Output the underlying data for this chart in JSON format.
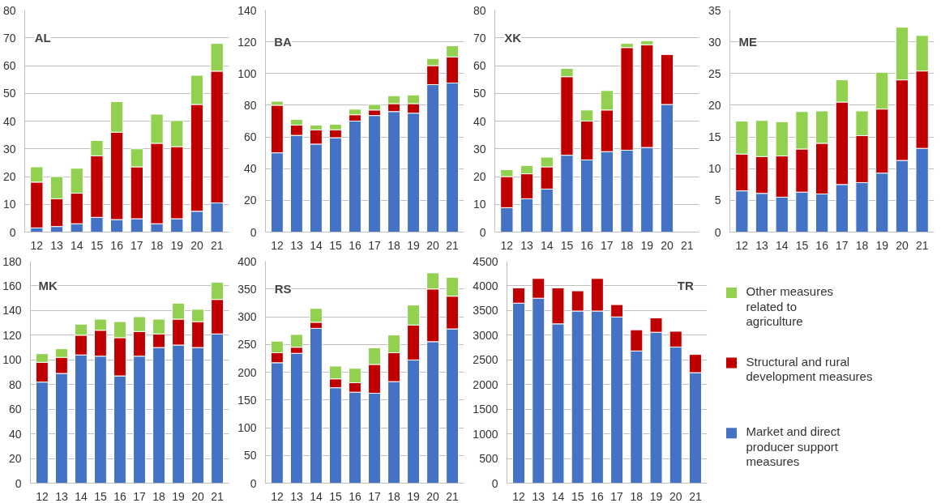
{
  "chart_data": [
    {
      "type": "bar",
      "stacked": true,
      "title": "AL",
      "categories": [
        "12",
        "13",
        "14",
        "15",
        "16",
        "17",
        "18",
        "19",
        "20",
        "21"
      ],
      "ylim": [
        0,
        80
      ],
      "yticks": [
        0,
        10,
        20,
        30,
        40,
        50,
        60,
        70,
        80
      ],
      "grid": "y",
      "series": [
        {
          "color": "#4472c4",
          "values": [
            1.5,
            2,
            3,
            5.3,
            4.5,
            4.8,
            3,
            4.8,
            7.5,
            10.5
          ]
        },
        {
          "color": "#c00000",
          "values": [
            16.5,
            10,
            11,
            22.2,
            31.5,
            18.7,
            29,
            26,
            38.5,
            47.5
          ]
        },
        {
          "color": "#92d050",
          "values": [
            5.5,
            8,
            9,
            5.5,
            11,
            6.5,
            10.5,
            9.4,
            10.5,
            10
          ]
        }
      ]
    },
    {
      "type": "bar",
      "stacked": true,
      "title": "BA",
      "categories": [
        "12",
        "13",
        "14",
        "15",
        "16",
        "17",
        "18",
        "19",
        "20",
        "21"
      ],
      "ylim": [
        0,
        140
      ],
      "yticks": [
        0,
        20,
        40,
        60,
        80,
        100,
        120,
        140
      ],
      "grid": "y",
      "series": [
        {
          "color": "#4472c4",
          "values": [
            50,
            61,
            55.5,
            59.5,
            70,
            73.5,
            76,
            75,
            93,
            94
          ]
        },
        {
          "color": "#c00000",
          "values": [
            30,
            6.5,
            9,
            5,
            4,
            3.5,
            5,
            6,
            12,
            16.5
          ]
        },
        {
          "color": "#92d050",
          "values": [
            2.5,
            3.5,
            3,
            3.5,
            3.5,
            3.5,
            5,
            5.5,
            4.5,
            7
          ]
        }
      ]
    },
    {
      "type": "bar",
      "stacked": true,
      "title": "XK",
      "categories": [
        "12",
        "13",
        "14",
        "15",
        "16",
        "17",
        "18",
        "19",
        "20",
        "21"
      ],
      "ylim": [
        0,
        80
      ],
      "yticks": [
        0,
        10,
        20,
        30,
        40,
        50,
        60,
        70,
        80
      ],
      "grid": "y",
      "series": [
        {
          "color": "#4472c4",
          "values": [
            8.8,
            12,
            15.5,
            27.7,
            26,
            29,
            29.5,
            30.5,
            46,
            null
          ]
        },
        {
          "color": "#c00000",
          "values": [
            11.2,
            9,
            8,
            28.3,
            14,
            15,
            37,
            37,
            18,
            null
          ]
        },
        {
          "color": "#92d050",
          "values": [
            2.5,
            3,
            3.5,
            3,
            4,
            7,
            1.5,
            1.5,
            null,
            null
          ]
        }
      ]
    },
    {
      "type": "bar",
      "stacked": true,
      "title": "ME",
      "categories": [
        "12",
        "13",
        "14",
        "15",
        "16",
        "17",
        "18",
        "19",
        "20",
        "21"
      ],
      "ylim": [
        0,
        35
      ],
      "yticks": [
        0,
        5,
        10,
        15,
        20,
        25,
        30,
        35
      ],
      "grid": "y",
      "series": [
        {
          "color": "#4472c4",
          "values": [
            6.5,
            6.1,
            5.5,
            6.3,
            6,
            7.5,
            7.8,
            9.3,
            11.3,
            13.2
          ]
        },
        {
          "color": "#c00000",
          "values": [
            5.8,
            5.8,
            6.5,
            6.8,
            8,
            13,
            7.4,
            10.1,
            12.7,
            12.2
          ]
        },
        {
          "color": "#92d050",
          "values": [
            5.2,
            5.7,
            5.4,
            5.9,
            5.1,
            3.5,
            3.9,
            5.8,
            8.3,
            5.6
          ]
        }
      ]
    },
    {
      "type": "bar",
      "stacked": true,
      "title": "MK",
      "categories": [
        "12",
        "13",
        "14",
        "15",
        "16",
        "17",
        "18",
        "19",
        "20",
        "21"
      ],
      "ylim": [
        0,
        180
      ],
      "yticks": [
        0,
        20,
        40,
        60,
        80,
        100,
        120,
        140,
        160,
        180
      ],
      "grid": "y",
      "series": [
        {
          "color": "#4472c4",
          "values": [
            82,
            89,
            104,
            103,
            87,
            103,
            110,
            112,
            110,
            121
          ]
        },
        {
          "color": "#c00000",
          "values": [
            16,
            13,
            16,
            21,
            31,
            20,
            11,
            21,
            21,
            28
          ]
        },
        {
          "color": "#92d050",
          "values": [
            7,
            7,
            9,
            9,
            13,
            12,
            12,
            13,
            10,
            14
          ]
        }
      ]
    },
    {
      "type": "bar",
      "stacked": true,
      "title": "RS",
      "categories": [
        "12",
        "13",
        "14",
        "15",
        "16",
        "17",
        "18",
        "19",
        "20",
        "21"
      ],
      "ylim": [
        0,
        400
      ],
      "yticks": [
        0,
        50,
        100,
        150,
        200,
        250,
        300,
        350,
        400
      ],
      "grid": "y",
      "series": [
        {
          "color": "#4472c4",
          "values": [
            217,
            234,
            279,
            172,
            164,
            162,
            183,
            222,
            255,
            278
          ]
        },
        {
          "color": "#c00000",
          "values": [
            18,
            11,
            11,
            16,
            17,
            52,
            52,
            63,
            95,
            59
          ]
        },
        {
          "color": "#92d050",
          "values": [
            21,
            23,
            25,
            23,
            26,
            30,
            32,
            36,
            29,
            34
          ]
        }
      ]
    },
    {
      "type": "bar",
      "stacked": true,
      "title": "TR",
      "categories": [
        "12",
        "13",
        "14",
        "15",
        "16",
        "17",
        "18",
        "19",
        "20",
        "21"
      ],
      "ylim": [
        0,
        4500
      ],
      "yticks": [
        0,
        500,
        1000,
        1500,
        2000,
        2500,
        3000,
        3500,
        4000,
        4500
      ],
      "grid": "y",
      "legend": "right",
      "series": [
        {
          "name": "Market and direct producer support measures",
          "color": "#4472c4",
          "values": [
            3650,
            3750,
            3230,
            3490,
            3490,
            3370,
            2680,
            3060,
            2760,
            2240
          ]
        },
        {
          "name": "Structural and rural development measures",
          "color": "#c00000",
          "values": [
            310,
            400,
            730,
            410,
            660,
            250,
            430,
            290,
            320,
            370
          ]
        },
        {
          "name": "Other measures related to agriculture",
          "color": "#92d050",
          "values": [
            null,
            null,
            null,
            null,
            null,
            null,
            null,
            null,
            null,
            null
          ]
        }
      ]
    }
  ]
}
